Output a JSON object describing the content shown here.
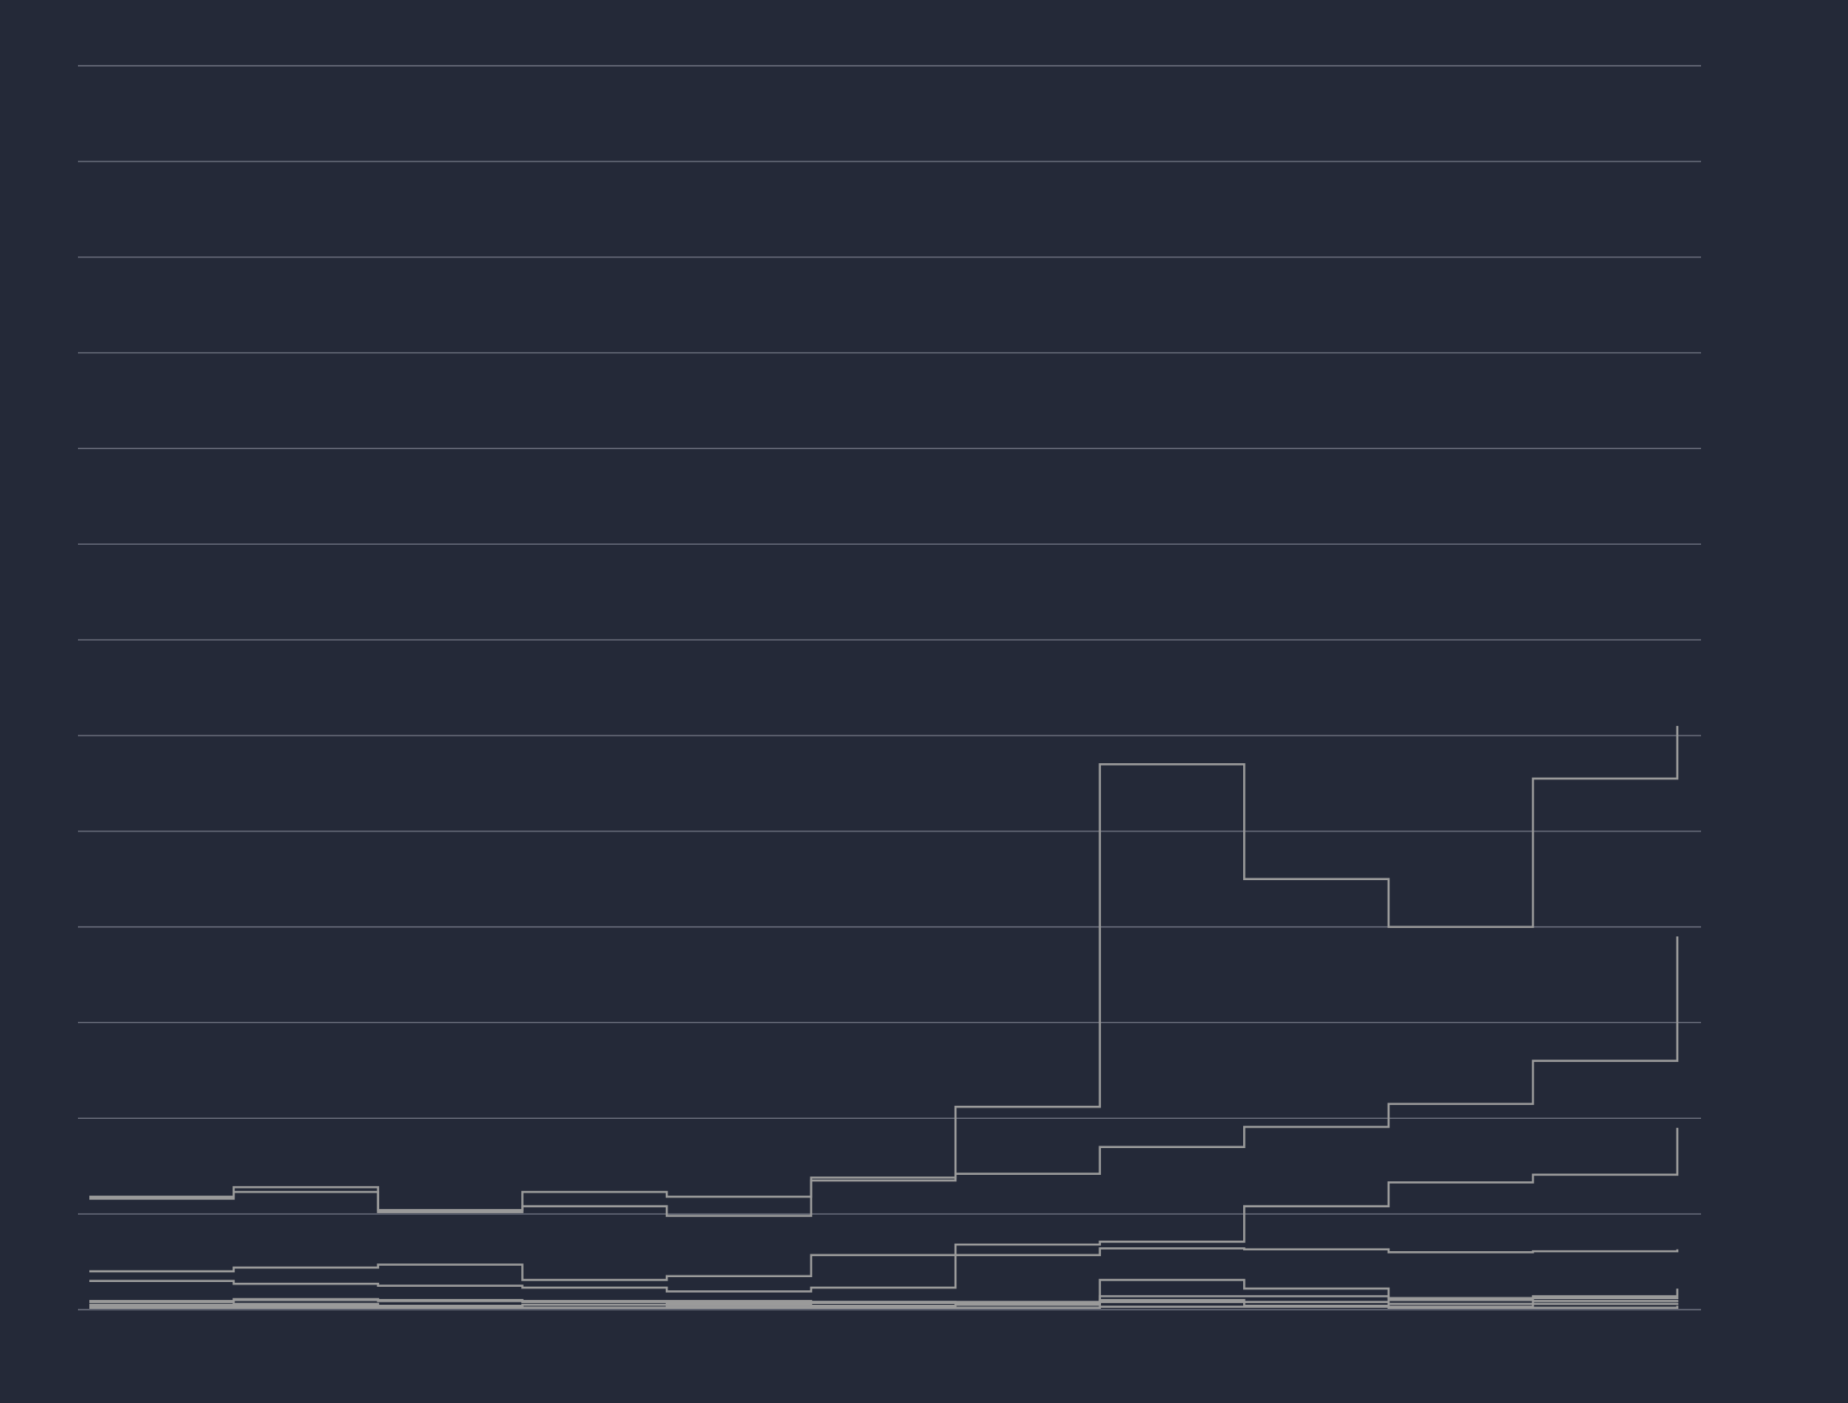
{
  "chart_data": {
    "type": "line",
    "step": "post",
    "title": "",
    "xlabel": "",
    "ylabel": "",
    "xlim": [
      0,
      11.08
    ],
    "ylim": [
      0,
      13
    ],
    "y_grid_values": [
      0,
      1,
      2,
      3,
      4,
      5,
      6,
      7,
      8,
      9,
      10,
      11,
      12,
      13
    ],
    "grid": "horizontal",
    "legend": "none",
    "x": [
      0,
      1,
      2,
      3,
      4,
      5,
      6,
      7,
      8,
      9,
      10,
      11
    ],
    "line_color": "#9a9a9a",
    "background_color": "#242938",
    "grid_color": "#6e7280",
    "series": [
      {
        "values": [
          1.18,
          1.28,
          1.04,
          1.23,
          1.18,
          1.38,
          1.42,
          1.7,
          1.91,
          2.15,
          2.6,
          3.9
        ]
      },
      {
        "values": [
          1.16,
          1.23,
          1.02,
          1.08,
          0.98,
          1.35,
          2.12,
          5.7,
          4.5,
          4.0,
          5.55,
          6.1
        ]
      },
      {
        "values": [
          0.4,
          0.44,
          0.47,
          0.31,
          0.35,
          0.57,
          0.68,
          0.71,
          1.08,
          1.33,
          1.41,
          1.9
        ]
      },
      {
        "values": [
          0.3,
          0.27,
          0.25,
          0.23,
          0.19,
          0.23,
          0.57,
          0.64,
          0.63,
          0.6,
          0.61,
          0.63
        ]
      },
      {
        "values": [
          0.09,
          0.11,
          0.1,
          0.09,
          0.09,
          0.08,
          0.08,
          0.31,
          0.22,
          0.12,
          0.14,
          0.22
        ]
      },
      {
        "values": [
          0.08,
          0.1,
          0.09,
          0.08,
          0.07,
          0.08,
          0.07,
          0.14,
          0.14,
          0.1,
          0.12,
          0.13
        ]
      },
      {
        "values": [
          0.05,
          0.06,
          0.04,
          0.05,
          0.05,
          0.07,
          0.06,
          0.1,
          0.08,
          0.06,
          0.09,
          0.1
        ]
      },
      {
        "values": [
          0.03,
          0.04,
          0.03,
          0.02,
          0.03,
          0.04,
          0.05,
          0.08,
          0.04,
          0.03,
          0.06,
          0.07
        ]
      },
      {
        "values": [
          0.02,
          0.02,
          0.02,
          0.02,
          0.02,
          0.02,
          0.02,
          0.03,
          0.03,
          0.02,
          0.02,
          0.04
        ]
      }
    ]
  }
}
